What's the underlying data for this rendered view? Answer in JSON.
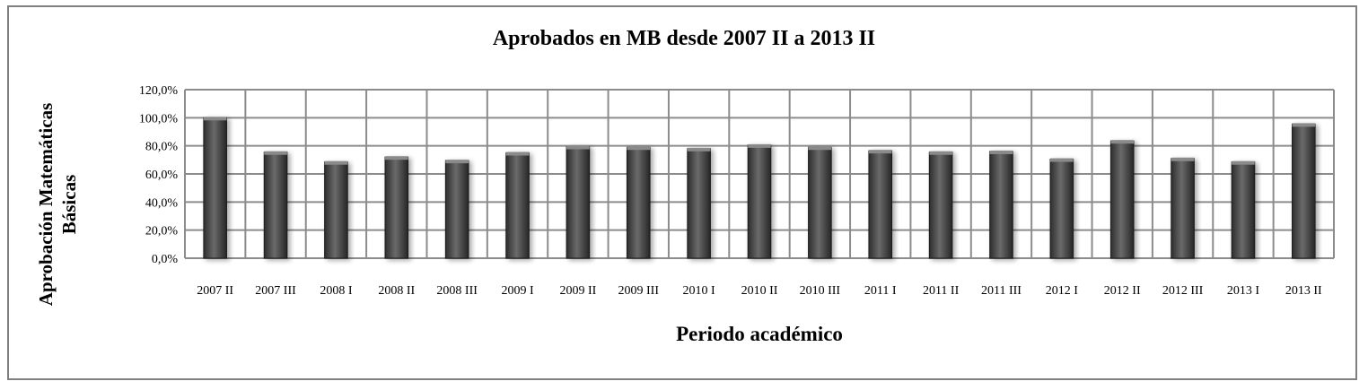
{
  "chart_data": {
    "type": "bar",
    "title": "Aprobados en MB desde 2007 II a 2013 II",
    "xlabel": "Periodo académico",
    "ylabel": [
      "Aprobación Matemáticas",
      "Básicas"
    ],
    "categories": [
      "2007 II",
      "2007 III",
      "2008 I",
      "2008 II",
      "2008 III",
      "2009 I",
      "2009 II",
      "2009 III",
      "2010 I",
      "2010 II",
      "2010 III",
      "2011 I",
      "2011 II",
      "2011 III",
      "2012 I",
      "2012 II",
      "2012 III",
      "2013 I",
      "2013 II"
    ],
    "values": [
      100.0,
      75.5,
      68.5,
      72.0,
      69.5,
      75.0,
      79.5,
      79.0,
      78.0,
      80.5,
      79.0,
      76.5,
      75.5,
      76.0,
      70.5,
      83.5,
      71.0,
      68.5,
      95.5
    ],
    "ylim": [
      0,
      120
    ],
    "yticks": [
      "0,0%",
      "20,0%",
      "40,0%",
      "60,0%",
      "80,0%",
      "100,0%",
      "120,0%"
    ],
    "grid": true,
    "bar_color": "#4d4d4d",
    "legend": "none"
  }
}
